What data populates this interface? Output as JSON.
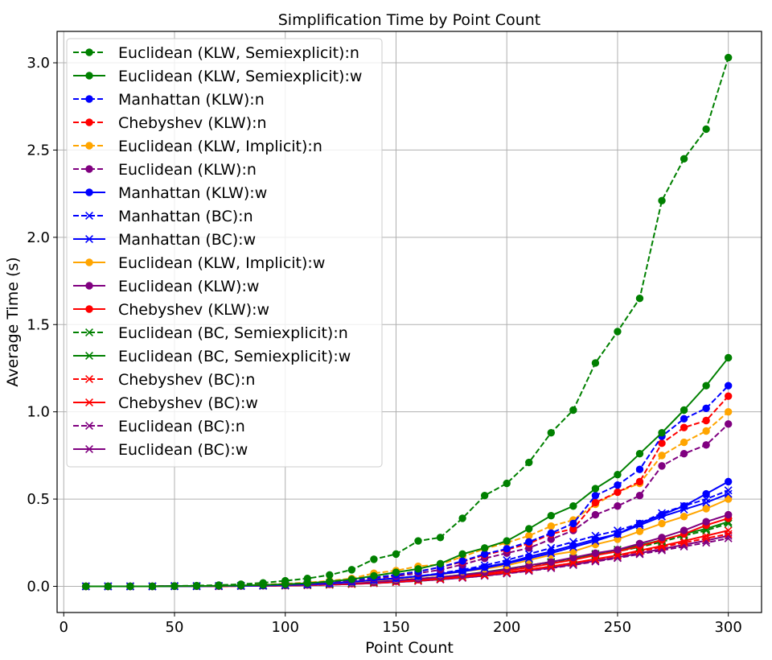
{
  "chart_data": {
    "type": "line",
    "title": "Simplification Time by Point Count",
    "xlabel": "Point Count",
    "ylabel": "Average Time (s)",
    "xlim": [
      -3,
      315
    ],
    "ylim": [
      -0.15,
      3.18
    ],
    "xticks": [
      0,
      50,
      100,
      150,
      200,
      250,
      300
    ],
    "yticks": [
      0.0,
      0.5,
      1.0,
      1.5,
      2.0,
      2.5,
      3.0
    ],
    "xtick_labels": [
      "0",
      "50",
      "100",
      "150",
      "200",
      "250",
      "300"
    ],
    "ytick_labels": [
      "0.0",
      "0.5",
      "1.0",
      "1.5",
      "2.0",
      "2.5",
      "3.0"
    ],
    "grid": true,
    "legend_position": "top-left",
    "x": [
      10,
      20,
      30,
      40,
      50,
      60,
      70,
      80,
      90,
      100,
      110,
      120,
      130,
      140,
      150,
      160,
      170,
      180,
      190,
      200,
      210,
      220,
      230,
      240,
      250,
      260,
      270,
      280,
      290,
      300
    ],
    "series": [
      {
        "name": "Euclidean (KLW, Semiexplicit):n",
        "color": "#008000",
        "dash": true,
        "marker": "circle",
        "values": [
          0.0,
          0.0,
          0.0,
          0.0,
          0.002,
          0.004,
          0.007,
          0.012,
          0.02,
          0.032,
          0.045,
          0.065,
          0.095,
          0.155,
          0.185,
          0.26,
          0.28,
          0.39,
          0.52,
          0.59,
          0.71,
          0.88,
          1.01,
          1.28,
          1.46,
          1.65,
          2.21,
          2.45,
          2.62,
          3.03
        ]
      },
      {
        "name": "Euclidean (KLW, Semiexplicit):w",
        "color": "#008000",
        "dash": false,
        "marker": "circle",
        "values": [
          0.0,
          0.0,
          0.0,
          0.0,
          0.001,
          0.002,
          0.003,
          0.005,
          0.008,
          0.012,
          0.018,
          0.028,
          0.04,
          0.06,
          0.08,
          0.1,
          0.13,
          0.185,
          0.22,
          0.26,
          0.33,
          0.405,
          0.46,
          0.56,
          0.64,
          0.76,
          0.88,
          1.01,
          1.15,
          1.31
        ]
      },
      {
        "name": "Manhattan (KLW):n",
        "color": "#0000ff",
        "dash": true,
        "marker": "circle",
        "values": [
          0.0,
          0.0,
          0.0,
          0.0,
          0.001,
          0.002,
          0.003,
          0.005,
          0.008,
          0.012,
          0.018,
          0.026,
          0.036,
          0.05,
          0.066,
          0.085,
          0.11,
          0.145,
          0.185,
          0.215,
          0.255,
          0.305,
          0.36,
          0.52,
          0.58,
          0.67,
          0.86,
          0.96,
          1.02,
          1.15
        ]
      },
      {
        "name": "Chebyshev (KLW):n",
        "color": "#ff0000",
        "dash": true,
        "marker": "circle",
        "values": [
          0.0,
          0.0,
          0.0,
          0.0,
          0.001,
          0.002,
          0.003,
          0.005,
          0.008,
          0.012,
          0.018,
          0.026,
          0.036,
          0.05,
          0.066,
          0.085,
          0.11,
          0.14,
          0.18,
          0.21,
          0.245,
          0.3,
          0.33,
          0.48,
          0.54,
          0.6,
          0.82,
          0.91,
          0.95,
          1.09
        ]
      },
      {
        "name": "Euclidean (KLW, Implicit):n",
        "color": "#ffa500",
        "dash": true,
        "marker": "circle",
        "values": [
          0.0,
          0.0,
          0.0,
          0.0,
          0.001,
          0.002,
          0.003,
          0.006,
          0.01,
          0.015,
          0.022,
          0.032,
          0.045,
          0.075,
          0.09,
          0.115,
          0.125,
          0.17,
          0.215,
          0.25,
          0.29,
          0.345,
          0.38,
          0.47,
          0.54,
          0.59,
          0.75,
          0.825,
          0.89,
          1.0
        ]
      },
      {
        "name": "Euclidean (KLW):n",
        "color": "#800080",
        "dash": true,
        "marker": "circle",
        "values": [
          0.0,
          0.0,
          0.0,
          0.0,
          0.001,
          0.002,
          0.003,
          0.005,
          0.008,
          0.011,
          0.016,
          0.023,
          0.032,
          0.044,
          0.058,
          0.075,
          0.095,
          0.125,
          0.16,
          0.19,
          0.22,
          0.27,
          0.32,
          0.41,
          0.46,
          0.52,
          0.69,
          0.76,
          0.81,
          0.93
        ]
      },
      {
        "name": "Manhattan (KLW):w",
        "color": "#0000ff",
        "dash": false,
        "marker": "circle",
        "values": [
          0.0,
          0.0,
          0.0,
          0.0,
          0.001,
          0.001,
          0.002,
          0.003,
          0.005,
          0.008,
          0.012,
          0.018,
          0.026,
          0.036,
          0.046,
          0.058,
          0.072,
          0.09,
          0.11,
          0.135,
          0.17,
          0.2,
          0.235,
          0.27,
          0.3,
          0.36,
          0.41,
          0.46,
          0.53,
          0.6
        ]
      },
      {
        "name": "Manhattan (BC):n",
        "color": "#0000ff",
        "dash": true,
        "marker": "x",
        "values": [
          0.0,
          0.0,
          0.0,
          0.0,
          0.001,
          0.001,
          0.002,
          0.003,
          0.005,
          0.008,
          0.012,
          0.018,
          0.026,
          0.036,
          0.046,
          0.058,
          0.075,
          0.095,
          0.12,
          0.15,
          0.185,
          0.22,
          0.255,
          0.29,
          0.32,
          0.36,
          0.42,
          0.46,
          0.5,
          0.55
        ]
      },
      {
        "name": "Manhattan (BC):w",
        "color": "#0000ff",
        "dash": false,
        "marker": "x",
        "values": [
          0.0,
          0.0,
          0.0,
          0.0,
          0.001,
          0.001,
          0.002,
          0.003,
          0.005,
          0.008,
          0.012,
          0.018,
          0.026,
          0.036,
          0.046,
          0.058,
          0.07,
          0.085,
          0.105,
          0.13,
          0.16,
          0.19,
          0.225,
          0.26,
          0.3,
          0.35,
          0.4,
          0.44,
          0.48,
          0.53
        ]
      },
      {
        "name": "Euclidean (KLW, Implicit):w",
        "color": "#ffa500",
        "dash": false,
        "marker": "circle",
        "values": [
          0.0,
          0.0,
          0.0,
          0.0,
          0.001,
          0.001,
          0.002,
          0.003,
          0.005,
          0.008,
          0.012,
          0.017,
          0.024,
          0.033,
          0.043,
          0.055,
          0.068,
          0.085,
          0.1,
          0.12,
          0.15,
          0.18,
          0.2,
          0.24,
          0.27,
          0.315,
          0.36,
          0.4,
          0.445,
          0.5
        ]
      },
      {
        "name": "Euclidean (KLW):w",
        "color": "#800080",
        "dash": false,
        "marker": "circle",
        "values": [
          0.0,
          0.0,
          0.0,
          0.0,
          0.001,
          0.001,
          0.002,
          0.002,
          0.004,
          0.006,
          0.009,
          0.013,
          0.018,
          0.025,
          0.033,
          0.043,
          0.053,
          0.065,
          0.08,
          0.098,
          0.12,
          0.14,
          0.165,
          0.19,
          0.21,
          0.245,
          0.28,
          0.32,
          0.37,
          0.41
        ]
      },
      {
        "name": "Chebyshev (KLW):w",
        "color": "#ff0000",
        "dash": false,
        "marker": "circle",
        "values": [
          0.0,
          0.0,
          0.0,
          0.0,
          0.001,
          0.001,
          0.001,
          0.002,
          0.003,
          0.005,
          0.008,
          0.012,
          0.016,
          0.022,
          0.029,
          0.038,
          0.048,
          0.06,
          0.074,
          0.09,
          0.108,
          0.13,
          0.152,
          0.178,
          0.2,
          0.23,
          0.265,
          0.3,
          0.35,
          0.39
        ]
      },
      {
        "name": "Euclidean (BC, Semiexplicit):n",
        "color": "#008000",
        "dash": true,
        "marker": "x",
        "values": [
          0.0,
          0.0,
          0.0,
          0.0,
          0.001,
          0.001,
          0.002,
          0.002,
          0.004,
          0.006,
          0.009,
          0.013,
          0.018,
          0.025,
          0.033,
          0.043,
          0.053,
          0.065,
          0.08,
          0.098,
          0.117,
          0.135,
          0.155,
          0.18,
          0.2,
          0.225,
          0.255,
          0.29,
          0.32,
          0.36
        ]
      },
      {
        "name": "Euclidean (BC, Semiexplicit):w",
        "color": "#008000",
        "dash": false,
        "marker": "x",
        "values": [
          0.0,
          0.0,
          0.0,
          0.0,
          0.001,
          0.001,
          0.002,
          0.002,
          0.004,
          0.006,
          0.009,
          0.013,
          0.018,
          0.025,
          0.033,
          0.043,
          0.053,
          0.066,
          0.082,
          0.1,
          0.12,
          0.14,
          0.162,
          0.186,
          0.21,
          0.235,
          0.265,
          0.3,
          0.33,
          0.37
        ]
      },
      {
        "name": "Chebyshev (BC):n",
        "color": "#ff0000",
        "dash": true,
        "marker": "x",
        "values": [
          0.0,
          0.0,
          0.0,
          0.0,
          0.001,
          0.001,
          0.001,
          0.002,
          0.003,
          0.005,
          0.007,
          0.01,
          0.014,
          0.02,
          0.026,
          0.034,
          0.043,
          0.054,
          0.066,
          0.08,
          0.096,
          0.114,
          0.134,
          0.155,
          0.175,
          0.2,
          0.225,
          0.25,
          0.275,
          0.3
        ]
      },
      {
        "name": "Chebyshev (BC):w",
        "color": "#ff0000",
        "dash": false,
        "marker": "x",
        "values": [
          0.0,
          0.0,
          0.0,
          0.0,
          0.001,
          0.001,
          0.001,
          0.002,
          0.003,
          0.005,
          0.007,
          0.01,
          0.014,
          0.02,
          0.026,
          0.034,
          0.043,
          0.054,
          0.066,
          0.08,
          0.096,
          0.114,
          0.134,
          0.156,
          0.178,
          0.205,
          0.232,
          0.26,
          0.29,
          0.32
        ]
      },
      {
        "name": "Euclidean (BC):n",
        "color": "#800080",
        "dash": true,
        "marker": "x",
        "values": [
          0.0,
          0.0,
          0.0,
          0.0,
          0.001,
          0.001,
          0.001,
          0.002,
          0.003,
          0.004,
          0.006,
          0.009,
          0.013,
          0.018,
          0.024,
          0.031,
          0.039,
          0.049,
          0.06,
          0.073,
          0.088,
          0.104,
          0.122,
          0.142,
          0.162,
          0.184,
          0.206,
          0.228,
          0.25,
          0.275
        ]
      },
      {
        "name": "Euclidean (BC):w",
        "color": "#800080",
        "dash": false,
        "marker": "x",
        "values": [
          0.0,
          0.0,
          0.0,
          0.0,
          0.001,
          0.001,
          0.001,
          0.002,
          0.003,
          0.004,
          0.006,
          0.009,
          0.013,
          0.018,
          0.024,
          0.031,
          0.039,
          0.049,
          0.061,
          0.075,
          0.09,
          0.107,
          0.125,
          0.146,
          0.166,
          0.19,
          0.214,
          0.238,
          0.262,
          0.29
        ]
      }
    ]
  }
}
